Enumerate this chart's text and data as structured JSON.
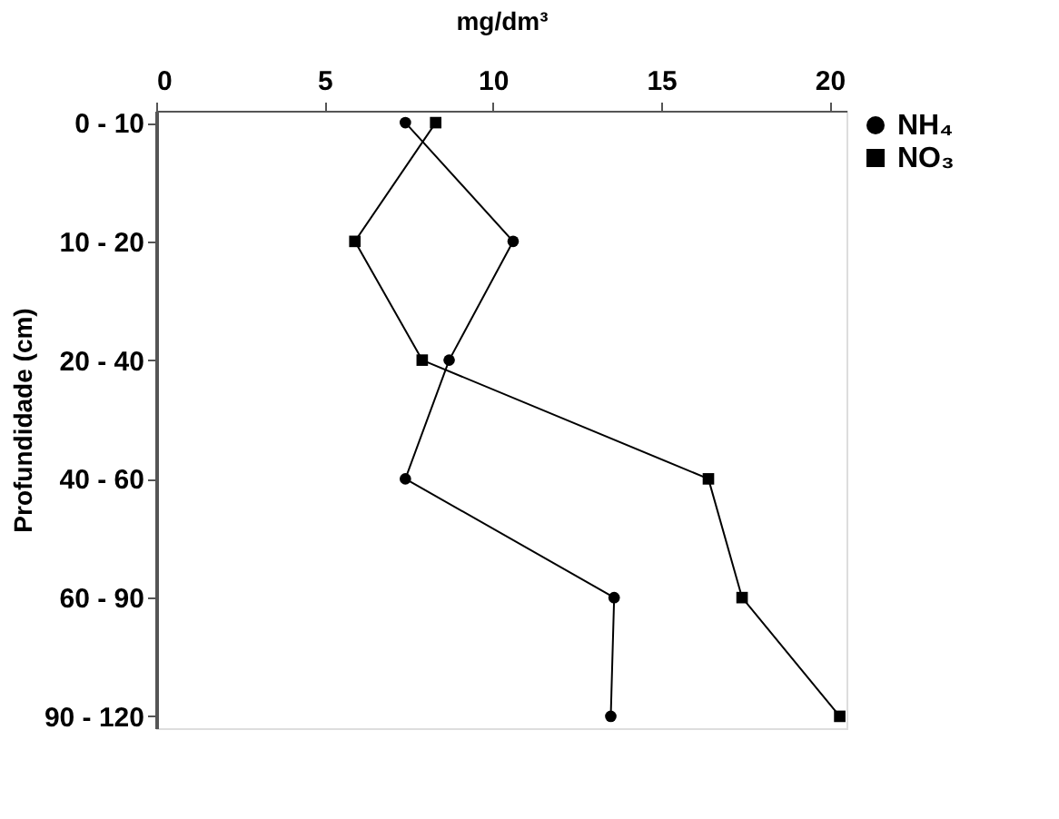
{
  "chart_data": {
    "type": "line",
    "orientation": "horizontal",
    "xlabel": "mg/dm³",
    "ylabel": "Profundidade (cm)",
    "categories": [
      "0 - 10",
      "10 - 20",
      "20 - 40",
      "40 - 60",
      "60 - 90",
      "90 - 120"
    ],
    "series": [
      {
        "name": "NH₄",
        "color": "#000000",
        "marker": "circle",
        "values": [
          7.4,
          10.6,
          8.7,
          7.4,
          13.6,
          13.5
        ]
      },
      {
        "name": "NO₃",
        "color": "#000000",
        "marker": "square",
        "values": [
          8.3,
          5.9,
          7.9,
          16.4,
          17.4,
          20.3
        ]
      }
    ],
    "xlim": [
      0,
      20.5
    ],
    "xticks": [
      0,
      5,
      10,
      15,
      20
    ],
    "grid": false,
    "legend": "right",
    "line_style": "solid"
  }
}
